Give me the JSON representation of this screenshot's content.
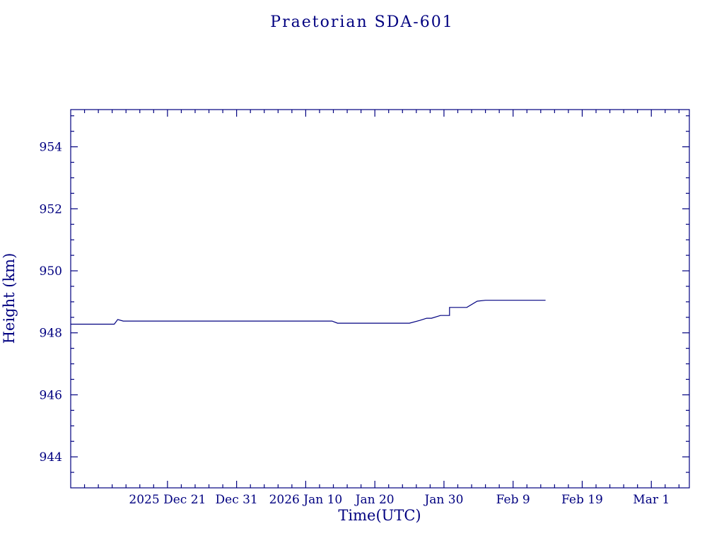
{
  "page": {
    "title": "Praetorian SDA-601"
  },
  "chart_data": {
    "type": "line",
    "title": "Praetorian SDA-601",
    "xlabel": "Time(UTC)",
    "ylabel": "Height (km)",
    "axis_color": "#000080",
    "line_color": "#000080",
    "background": "#ffffff",
    "x_unit": "days since 2025 Dec 7 00:00 UTC",
    "xlim": [
      0,
      89.5
    ],
    "ylim": [
      943.0,
      955.2
    ],
    "x_minor_step": 2,
    "y_minor_step": 0.5,
    "x_ticks": [
      {
        "value": 14,
        "label": "2025 Dec 21"
      },
      {
        "value": 24,
        "label": "Dec 31"
      },
      {
        "value": 34,
        "label": "2026 Jan 10"
      },
      {
        "value": 44,
        "label": "Jan 20"
      },
      {
        "value": 54,
        "label": "Jan 30"
      },
      {
        "value": 64,
        "label": "Feb 9"
      },
      {
        "value": 74,
        "label": "Feb 19"
      },
      {
        "value": 84,
        "label": "Mar 1"
      }
    ],
    "y_ticks": [
      {
        "value": 944,
        "label": "944"
      },
      {
        "value": 946,
        "label": "946"
      },
      {
        "value": 948,
        "label": "948"
      },
      {
        "value": 950,
        "label": "950"
      },
      {
        "value": 952,
        "label": "952"
      },
      {
        "value": 954,
        "label": "954"
      }
    ],
    "points": [
      [
        0.0,
        948.28
      ],
      [
        6.3,
        948.28
      ],
      [
        6.8,
        948.43
      ],
      [
        7.6,
        948.38
      ],
      [
        37.8,
        948.38
      ],
      [
        38.6,
        948.31
      ],
      [
        49.0,
        948.31
      ],
      [
        50.5,
        948.4
      ],
      [
        51.5,
        948.47
      ],
      [
        52.2,
        948.47
      ],
      [
        53.5,
        948.56
      ],
      [
        54.8,
        948.56
      ],
      [
        54.8,
        948.82
      ],
      [
        57.3,
        948.82
      ],
      [
        58.8,
        949.02
      ],
      [
        60.0,
        949.05
      ],
      [
        68.7,
        949.05
      ]
    ],
    "legend": "none",
    "grid": false
  }
}
